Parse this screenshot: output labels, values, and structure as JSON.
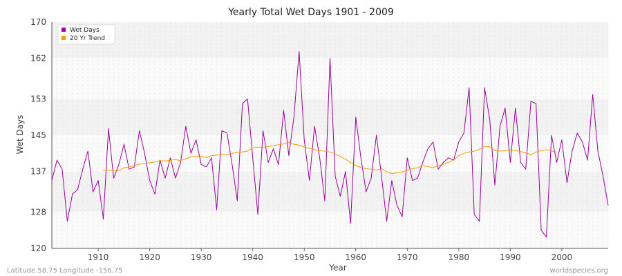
{
  "chart_data": {
    "type": "line",
    "title": "Yearly Total Wet Days 1901 - 2009",
    "xlabel": "Year",
    "ylabel": "Wet Days",
    "xlim": [
      1901,
      2009
    ],
    "ylim": [
      120,
      170
    ],
    "yticks": [
      120,
      128,
      137,
      145,
      153,
      162,
      170
    ],
    "xticks": [
      1910,
      1920,
      1930,
      1940,
      1950,
      1960,
      1970,
      1980,
      1990,
      2000
    ],
    "grid": true,
    "legend_position": "top-left",
    "series": [
      {
        "name": "Wet Days",
        "color": "#990099",
        "x": [
          1901,
          1902,
          1903,
          1904,
          1905,
          1906,
          1907,
          1908,
          1909,
          1910,
          1911,
          1912,
          1913,
          1914,
          1915,
          1916,
          1917,
          1918,
          1919,
          1920,
          1921,
          1922,
          1923,
          1924,
          1925,
          1926,
          1927,
          1928,
          1929,
          1930,
          1931,
          1932,
          1933,
          1934,
          1935,
          1936,
          1937,
          1938,
          1939,
          1940,
          1941,
          1942,
          1943,
          1944,
          1945,
          1946,
          1947,
          1948,
          1949,
          1950,
          1951,
          1952,
          1953,
          1954,
          1955,
          1956,
          1957,
          1958,
          1959,
          1960,
          1961,
          1962,
          1963,
          1964,
          1965,
          1966,
          1967,
          1968,
          1969,
          1970,
          1971,
          1972,
          1973,
          1974,
          1975,
          1976,
          1977,
          1978,
          1979,
          1980,
          1981,
          1982,
          1983,
          1984,
          1985,
          1986,
          1987,
          1988,
          1989,
          1990,
          1991,
          1992,
          1993,
          1994,
          1995,
          1996,
          1997,
          1998,
          1999,
          2000,
          2001,
          2002,
          2003,
          2004,
          2005,
          2006,
          2007,
          2008,
          2009
        ],
        "values": [
          135.0,
          139.5,
          137.5,
          126.0,
          132.0,
          133.0,
          137.5,
          141.5,
          132.5,
          135.0,
          126.5,
          146.5,
          135.5,
          138.5,
          143.0,
          137.5,
          138.0,
          146.0,
          141.0,
          135.0,
          132.0,
          139.5,
          135.5,
          140.0,
          135.5,
          139.0,
          147.0,
          141.0,
          144.0,
          138.5,
          138.0,
          140.0,
          128.5,
          146.0,
          145.5,
          138.5,
          130.5,
          152.0,
          153.0,
          140.0,
          127.5,
          146.0,
          139.0,
          142.0,
          138.5,
          150.5,
          140.5,
          149.0,
          163.5,
          144.0,
          135.0,
          147.0,
          140.0,
          130.5,
          162.0,
          136.0,
          131.5,
          137.0,
          125.5,
          149.0,
          140.0,
          132.5,
          135.5,
          145.0,
          136.0,
          126.0,
          135.0,
          129.5,
          127.0,
          140.0,
          135.0,
          135.5,
          139.0,
          142.0,
          143.5,
          137.5,
          139.0,
          140.0,
          139.5,
          143.5,
          145.5,
          155.5,
          127.5,
          126.0,
          155.5,
          148.5,
          134.0,
          147.0,
          151.0,
          139.0,
          151.0,
          139.0,
          137.5,
          152.5,
          152.0,
          124.0,
          122.5,
          145.0,
          139.0,
          144.0,
          134.5,
          141.5,
          145.5,
          143.5,
          139.5,
          154.0,
          141.5,
          136.0,
          129.5
        ]
      },
      {
        "name": "20 Yr Trend",
        "color": "#ff9900",
        "x": [
          1911,
          1912,
          1913,
          1914,
          1915,
          1916,
          1917,
          1918,
          1919,
          1920,
          1921,
          1922,
          1923,
          1924,
          1925,
          1926,
          1927,
          1928,
          1929,
          1930,
          1931,
          1932,
          1933,
          1934,
          1935,
          1936,
          1937,
          1938,
          1939,
          1940,
          1941,
          1942,
          1943,
          1944,
          1945,
          1946,
          1947,
          1948,
          1949,
          1950,
          1951,
          1952,
          1953,
          1954,
          1955,
          1956,
          1957,
          1958,
          1959,
          1960,
          1961,
          1962,
          1963,
          1964,
          1965,
          1966,
          1967,
          1968,
          1969,
          1970,
          1971,
          1972,
          1973,
          1974,
          1975,
          1976,
          1977,
          1978,
          1979,
          1980,
          1981,
          1982,
          1983,
          1984,
          1985,
          1986,
          1987,
          1988,
          1989,
          1990,
          1991,
          1992,
          1993,
          1994,
          1995,
          1996,
          1997,
          1998,
          1999
        ],
        "values": [
          137.2,
          137.3,
          137.1,
          137.2,
          137.8,
          138.0,
          138.3,
          138.6,
          138.8,
          138.9,
          139.1,
          139.4,
          139.3,
          139.5,
          139.6,
          139.4,
          139.8,
          140.2,
          140.4,
          140.3,
          140.1,
          140.5,
          140.6,
          140.8,
          140.7,
          141.0,
          141.2,
          141.3,
          141.5,
          142.2,
          142.4,
          142.3,
          142.5,
          142.7,
          142.9,
          143.1,
          143.4,
          143.0,
          142.8,
          142.4,
          142.1,
          141.8,
          141.6,
          141.5,
          141.3,
          140.9,
          140.3,
          139.7,
          139.0,
          138.3,
          137.9,
          137.6,
          137.5,
          137.3,
          137.6,
          136.9,
          136.5,
          136.7,
          136.9,
          137.3,
          137.6,
          137.8,
          138.3,
          138.1,
          137.8,
          138.3,
          138.6,
          139.0,
          139.5,
          140.5,
          141.0,
          141.3,
          141.5,
          141.9,
          142.6,
          142.4,
          141.6,
          141.5,
          141.6,
          141.8,
          141.6,
          141.4,
          141.1,
          140.7,
          141.3,
          141.6,
          141.8,
          141.5,
          141.3
        ]
      }
    ]
  },
  "footer": {
    "location": "Latitude 58.75 Longitude -156.75",
    "source": "worldspecies.org"
  }
}
